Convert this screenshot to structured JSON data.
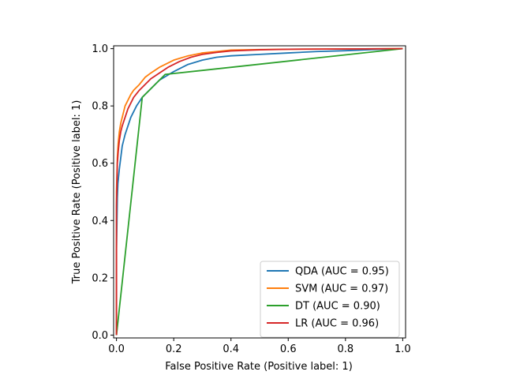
{
  "chart_data": {
    "type": "line",
    "title": "",
    "xlabel": "False Positive Rate (Positive label: 1)",
    "ylabel": "True Positive Rate (Positive label: 1)",
    "xlim": [
      -0.01,
      1.01
    ],
    "ylim": [
      -0.01,
      1.01
    ],
    "xticks": [
      0.0,
      0.2,
      0.4,
      0.6,
      0.8,
      1.0
    ],
    "yticks": [
      0.0,
      0.2,
      0.4,
      0.6,
      0.8,
      1.0
    ],
    "xtick_labels": [
      "0.0",
      "0.2",
      "0.4",
      "0.6",
      "0.8",
      "1.0"
    ],
    "ytick_labels": [
      "0.0",
      "0.2",
      "0.4",
      "0.6",
      "0.8",
      "1.0"
    ],
    "grid": false,
    "legend_position": "lower-right",
    "series": [
      {
        "name": "QDA (AUC = 0.95)",
        "color": "#1f77b4",
        "x": [
          0.0,
          0.0,
          0.003,
          0.005,
          0.01,
          0.015,
          0.02,
          0.03,
          0.04,
          0.05,
          0.07,
          0.09,
          0.12,
          0.15,
          0.2,
          0.25,
          0.3,
          0.35,
          0.4,
          0.5,
          0.6,
          0.7,
          0.8,
          0.9,
          1.0
        ],
        "y": [
          0.0,
          0.3,
          0.48,
          0.53,
          0.58,
          0.62,
          0.66,
          0.7,
          0.73,
          0.76,
          0.8,
          0.83,
          0.86,
          0.89,
          0.92,
          0.945,
          0.96,
          0.97,
          0.975,
          0.98,
          0.985,
          0.99,
          0.993,
          0.997,
          1.0
        ]
      },
      {
        "name": "SVM (AUC = 0.97)",
        "color": "#ff7f0e",
        "x": [
          0.0,
          0.0,
          0.003,
          0.006,
          0.01,
          0.015,
          0.02,
          0.03,
          0.04,
          0.05,
          0.06,
          0.08,
          0.1,
          0.12,
          0.15,
          0.2,
          0.25,
          0.3,
          0.35,
          0.4,
          0.5,
          0.6,
          0.8,
          1.0
        ],
        "y": [
          0.0,
          0.5,
          0.62,
          0.67,
          0.71,
          0.74,
          0.76,
          0.8,
          0.82,
          0.84,
          0.855,
          0.875,
          0.9,
          0.915,
          0.935,
          0.96,
          0.975,
          0.985,
          0.99,
          0.995,
          0.997,
          0.998,
          0.999,
          1.0
        ]
      },
      {
        "name": "DT (AUC = 0.90)",
        "color": "#2ca02c",
        "x": [
          0.0,
          0.09,
          0.17,
          1.0
        ],
        "y": [
          0.0,
          0.83,
          0.91,
          1.0
        ]
      },
      {
        "name": "LR (AUC = 0.96)",
        "color": "#d62728",
        "x": [
          0.0,
          0.0,
          0.003,
          0.006,
          0.01,
          0.015,
          0.02,
          0.03,
          0.04,
          0.05,
          0.06,
          0.08,
          0.1,
          0.12,
          0.15,
          0.18,
          0.22,
          0.26,
          0.3,
          0.35,
          0.4,
          0.5,
          0.6,
          0.8,
          1.0
        ],
        "y": [
          0.0,
          0.45,
          0.6,
          0.64,
          0.68,
          0.71,
          0.73,
          0.76,
          0.79,
          0.81,
          0.83,
          0.855,
          0.875,
          0.895,
          0.915,
          0.935,
          0.955,
          0.97,
          0.98,
          0.987,
          0.992,
          0.996,
          0.998,
          0.999,
          1.0
        ]
      }
    ]
  }
}
